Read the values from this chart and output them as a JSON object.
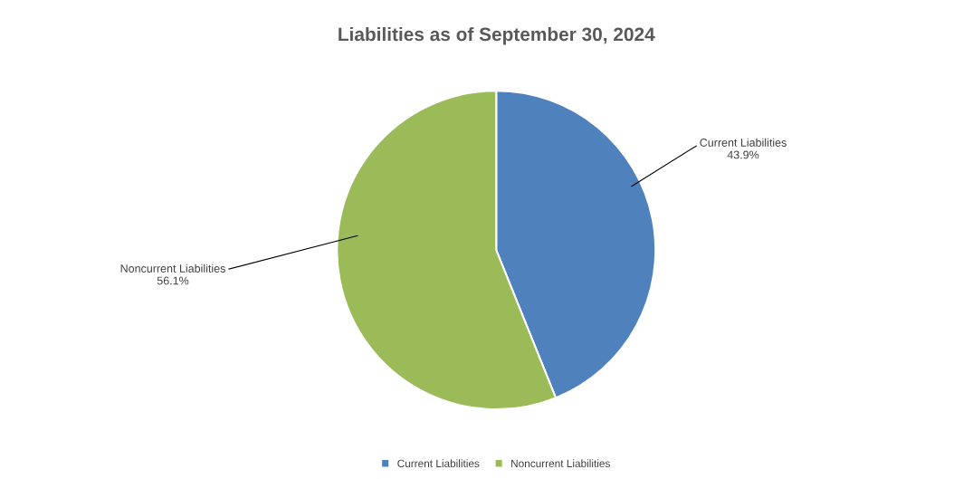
{
  "chart_data": {
    "type": "pie",
    "title": "Liabilities as of September 30, 2024",
    "categories": [
      "Current Liabilities",
      "Noncurrent Liabilities"
    ],
    "values": [
      43.9,
      56.1
    ],
    "value_labels": [
      "43.9%",
      "56.1%"
    ],
    "colors": [
      "#4f81bd",
      "#9bbb59"
    ],
    "legend": "bottom"
  }
}
